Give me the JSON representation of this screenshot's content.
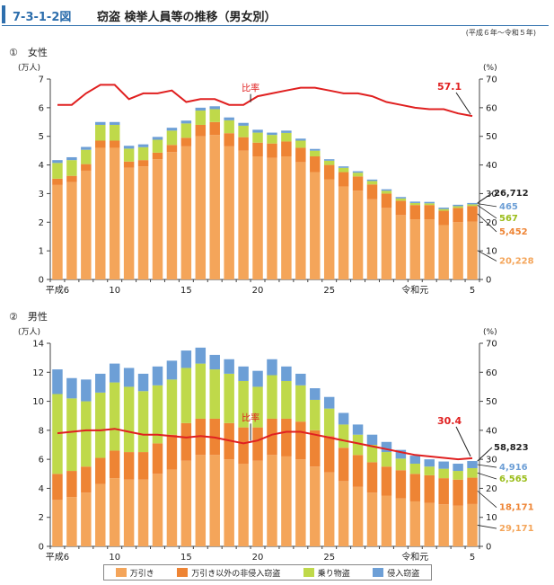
{
  "figure_number": "7-3-1-2図",
  "figure_title": "窃盗 検挙人員等の推移（男女別）",
  "period": "(平成６年～令和５年)",
  "colors": {
    "manbiki": "#f4a55a",
    "hishinnyu": "#ee8434",
    "norimono": "#bfd94a",
    "shinnyu": "#6d9fd6",
    "ratio_line": "#e02020",
    "accent": "#2e6fad"
  },
  "legend": [
    "万引き",
    "万引き以外の非侵入窃盗",
    "乗り物盗",
    "侵入窃盗"
  ],
  "chart_data": [
    {
      "type": "bar",
      "panel_label": "①　女性",
      "y_unit_left": "(万人)",
      "y_unit_right": "(%)",
      "ylim_left": [
        0,
        7
      ],
      "yticks_left": [
        "0",
        "1",
        "2",
        "3",
        "4",
        "5",
        "6",
        "7"
      ],
      "ylim_right": [
        0,
        70
      ],
      "yticks_right": [
        "0",
        "10",
        "20",
        "30",
        "40",
        "50",
        "60",
        "70"
      ],
      "x_tick_labels": [
        {
          "index": 0,
          "label": "平成6"
        },
        {
          "index": 4,
          "label": "10"
        },
        {
          "index": 9,
          "label": "15"
        },
        {
          "index": 14,
          "label": "20"
        },
        {
          "index": 19,
          "label": "25"
        },
        {
          "index": 25,
          "label": "令和元"
        },
        {
          "index": 29,
          "label": "5"
        }
      ],
      "categories": [
        "H6",
        "H7",
        "H8",
        "H9",
        "H10",
        "H11",
        "H12",
        "H13",
        "H14",
        "H15",
        "H16",
        "H17",
        "H18",
        "H19",
        "H20",
        "H21",
        "H22",
        "H23",
        "H24",
        "H25",
        "H26",
        "H27",
        "H28",
        "H29",
        "H30",
        "R1",
        "R2",
        "R3",
        "R4",
        "R5"
      ],
      "series": [
        {
          "name": "万引き",
          "values": [
            3.3,
            3.4,
            3.8,
            4.6,
            4.6,
            3.9,
            3.95,
            4.2,
            4.45,
            4.65,
            5.0,
            5.05,
            4.65,
            4.5,
            4.3,
            4.25,
            4.3,
            4.1,
            3.75,
            3.5,
            3.25,
            3.1,
            2.8,
            2.5,
            2.25,
            2.1,
            2.1,
            1.9,
            2.0,
            2.0228
          ]
        },
        {
          "name": "万引き以外の非侵入窃盗",
          "values": [
            0.22,
            0.22,
            0.23,
            0.25,
            0.25,
            0.22,
            0.22,
            0.23,
            0.25,
            0.3,
            0.4,
            0.45,
            0.46,
            0.47,
            0.48,
            0.5,
            0.52,
            0.5,
            0.55,
            0.5,
            0.5,
            0.5,
            0.52,
            0.5,
            0.5,
            0.5,
            0.5,
            0.5,
            0.5,
            0.5452
          ]
        },
        {
          "name": "乗り物盗",
          "values": [
            0.55,
            0.55,
            0.5,
            0.55,
            0.55,
            0.45,
            0.45,
            0.45,
            0.5,
            0.5,
            0.5,
            0.45,
            0.45,
            0.4,
            0.35,
            0.3,
            0.3,
            0.25,
            0.2,
            0.15,
            0.15,
            0.13,
            0.12,
            0.1,
            0.08,
            0.07,
            0.06,
            0.06,
            0.06,
            0.0567
          ]
        },
        {
          "name": "侵入窃盗",
          "values": [
            0.1,
            0.1,
            0.1,
            0.1,
            0.1,
            0.1,
            0.1,
            0.1,
            0.1,
            0.1,
            0.1,
            0.1,
            0.1,
            0.1,
            0.1,
            0.08,
            0.08,
            0.07,
            0.06,
            0.05,
            0.05,
            0.05,
            0.05,
            0.05,
            0.05,
            0.05,
            0.05,
            0.05,
            0.05,
            0.0465
          ]
        },
        {
          "name": "比率",
          "axis": "right",
          "type": "line",
          "values": [
            61,
            61,
            65,
            68,
            68,
            63,
            65,
            65,
            66,
            62,
            63,
            63,
            61,
            61,
            64,
            65,
            66,
            67,
            67,
            66,
            65,
            65,
            64,
            62,
            61,
            60,
            59.5,
            59.5,
            58,
            57.1
          ]
        }
      ],
      "ratio_label": "比率",
      "annotations": {
        "ratio_last": "57.1",
        "total": "26,712",
        "shinnyu": "465",
        "norimono": "567",
        "hishinnyu": "5,452",
        "manbiki": "20,228"
      }
    },
    {
      "type": "bar",
      "panel_label": "②　男性",
      "y_unit_left": "(万人)",
      "y_unit_right": "(%)",
      "ylim_left": [
        0,
        14
      ],
      "yticks_left": [
        "0",
        "2",
        "4",
        "6",
        "8",
        "10",
        "12",
        "14"
      ],
      "ylim_right": [
        0,
        70
      ],
      "yticks_right": [
        "0",
        "10",
        "20",
        "30",
        "40",
        "50",
        "60",
        "70"
      ],
      "x_tick_labels": [
        {
          "index": 0,
          "label": "平成6"
        },
        {
          "index": 4,
          "label": "10"
        },
        {
          "index": 9,
          "label": "15"
        },
        {
          "index": 14,
          "label": "20"
        },
        {
          "index": 19,
          "label": "25"
        },
        {
          "index": 25,
          "label": "令和元"
        },
        {
          "index": 29,
          "label": "5"
        }
      ],
      "categories": [
        "H6",
        "H7",
        "H8",
        "H9",
        "H10",
        "H11",
        "H12",
        "H13",
        "H14",
        "H15",
        "H16",
        "H17",
        "H18",
        "H19",
        "H20",
        "H21",
        "H22",
        "H23",
        "H24",
        "H25",
        "H26",
        "H27",
        "H28",
        "H29",
        "H30",
        "R1",
        "R2",
        "R3",
        "R4",
        "R5"
      ],
      "series": [
        {
          "name": "万引き",
          "values": [
            3.2,
            3.4,
            3.7,
            4.3,
            4.7,
            4.6,
            4.6,
            5.0,
            5.3,
            5.9,
            6.3,
            6.3,
            6.0,
            5.7,
            5.9,
            6.3,
            6.2,
            6.0,
            5.5,
            5.1,
            4.5,
            4.1,
            3.7,
            3.5,
            3.3,
            3.1,
            3.0,
            2.9,
            2.8,
            2.9171
          ]
        },
        {
          "name": "万引き以外の非侵入窃盗",
          "values": [
            1.8,
            1.8,
            1.8,
            1.8,
            1.9,
            1.9,
            1.9,
            2.1,
            2.4,
            2.6,
            2.5,
            2.5,
            2.5,
            2.5,
            2.3,
            2.5,
            2.6,
            2.6,
            2.5,
            2.5,
            2.3,
            2.2,
            2.1,
            2.0,
            1.95,
            1.9,
            1.9,
            1.8,
            1.8,
            1.8171
          ]
        },
        {
          "name": "乗り物盗",
          "values": [
            5.5,
            5.0,
            4.5,
            4.5,
            4.7,
            4.5,
            4.2,
            4.0,
            3.8,
            3.8,
            3.8,
            3.4,
            3.4,
            3.2,
            2.8,
            3.0,
            2.6,
            2.5,
            2.1,
            1.9,
            1.6,
            1.4,
            1.2,
            1.0,
            0.8,
            0.7,
            0.6,
            0.65,
            0.6,
            0.6565
          ]
        },
        {
          "name": "侵入窃盗",
          "values": [
            1.7,
            1.4,
            1.5,
            1.3,
            1.3,
            1.3,
            1.2,
            1.3,
            1.3,
            1.2,
            1.1,
            1.0,
            1.0,
            1.0,
            1.1,
            1.1,
            1.0,
            0.8,
            0.8,
            0.8,
            0.8,
            0.7,
            0.7,
            0.7,
            0.6,
            0.55,
            0.5,
            0.5,
            0.5,
            0.4916
          ]
        },
        {
          "name": "比率",
          "axis": "right",
          "type": "line",
          "values": [
            39,
            39.5,
            40,
            40,
            40.5,
            39.5,
            38.5,
            38.5,
            38,
            37.5,
            38,
            37.5,
            36.5,
            35.5,
            36.5,
            38.5,
            39.5,
            39.5,
            38.5,
            37.5,
            36.5,
            35.5,
            34.5,
            33.5,
            32.5,
            31.5,
            31,
            30.5,
            30,
            30.4
          ]
        }
      ],
      "ratio_label": "比率",
      "annotations": {
        "ratio_last": "30.4",
        "total": "58,823",
        "shinnyu": "4,916",
        "norimono": "6,565",
        "hishinnyu": "18,171",
        "manbiki": "29,171"
      }
    }
  ]
}
